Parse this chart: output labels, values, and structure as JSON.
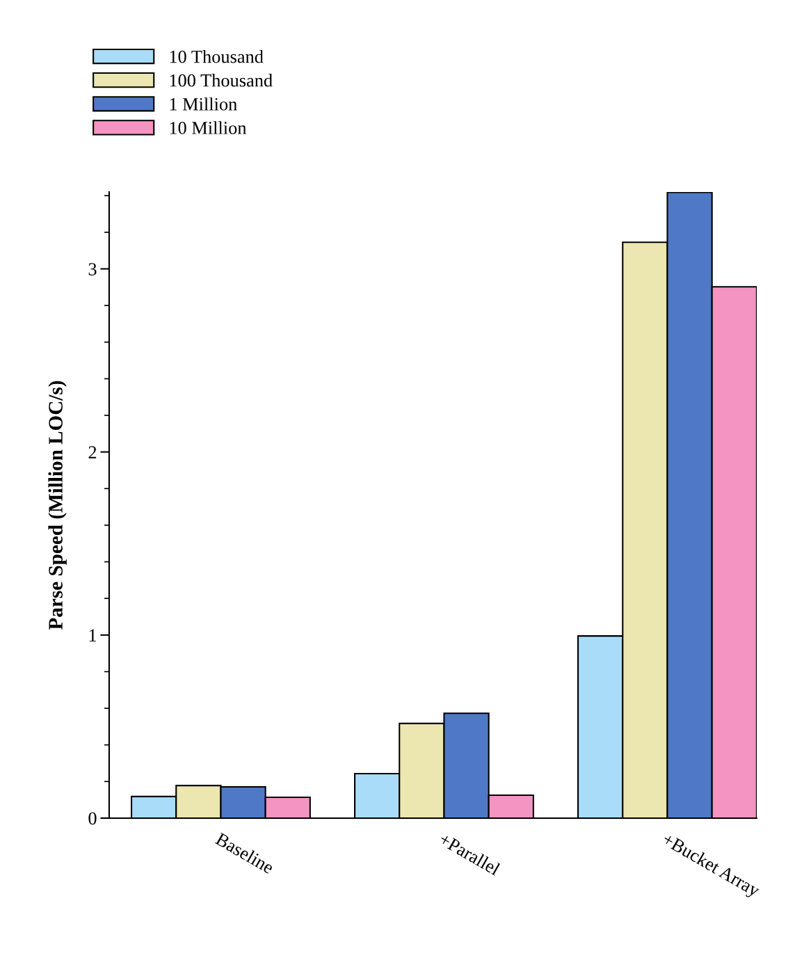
{
  "chart_data": {
    "type": "bar",
    "ylabel": "Parse Speed (Million LOC/s)",
    "categories": [
      "Baseline",
      "+Parallel",
      "+Bucket Array"
    ],
    "series": [
      {
        "name": "10 Thousand",
        "color": "#a8dcf8",
        "values": [
          0.118,
          0.243,
          0.995
        ]
      },
      {
        "name": "100 Thousand",
        "color": "#ece6b0",
        "values": [
          0.178,
          0.517,
          3.145
        ]
      },
      {
        "name": "1 Million",
        "color": "#4f79c6",
        "values": [
          0.171,
          0.573,
          3.418
        ]
      },
      {
        "name": "10 Million",
        "color": "#f494c2",
        "values": [
          0.114,
          0.125,
          2.902
        ]
      }
    ],
    "ylim": [
      0,
      3.42
    ],
    "yticks": [
      0,
      {
        "value": 0.2,
        "label": null
      },
      {
        "value": 0.4,
        "label": null
      },
      {
        "value": 0.6,
        "label": null
      },
      {
        "value": 0.8,
        "label": null
      },
      1,
      {
        "value": 1.2,
        "label": null
      },
      {
        "value": 1.4,
        "label": null
      },
      {
        "value": 1.6,
        "label": null
      },
      {
        "value": 1.8,
        "label": null
      },
      2,
      {
        "value": 2.2,
        "label": null
      },
      {
        "value": 2.4,
        "label": null
      },
      {
        "value": 2.6,
        "label": null
      },
      {
        "value": 2.8,
        "label": null
      },
      3,
      {
        "value": 3.2,
        "label": null
      },
      {
        "value": 3.4,
        "label": null
      }
    ],
    "legend": "top left",
    "grid": false
  }
}
